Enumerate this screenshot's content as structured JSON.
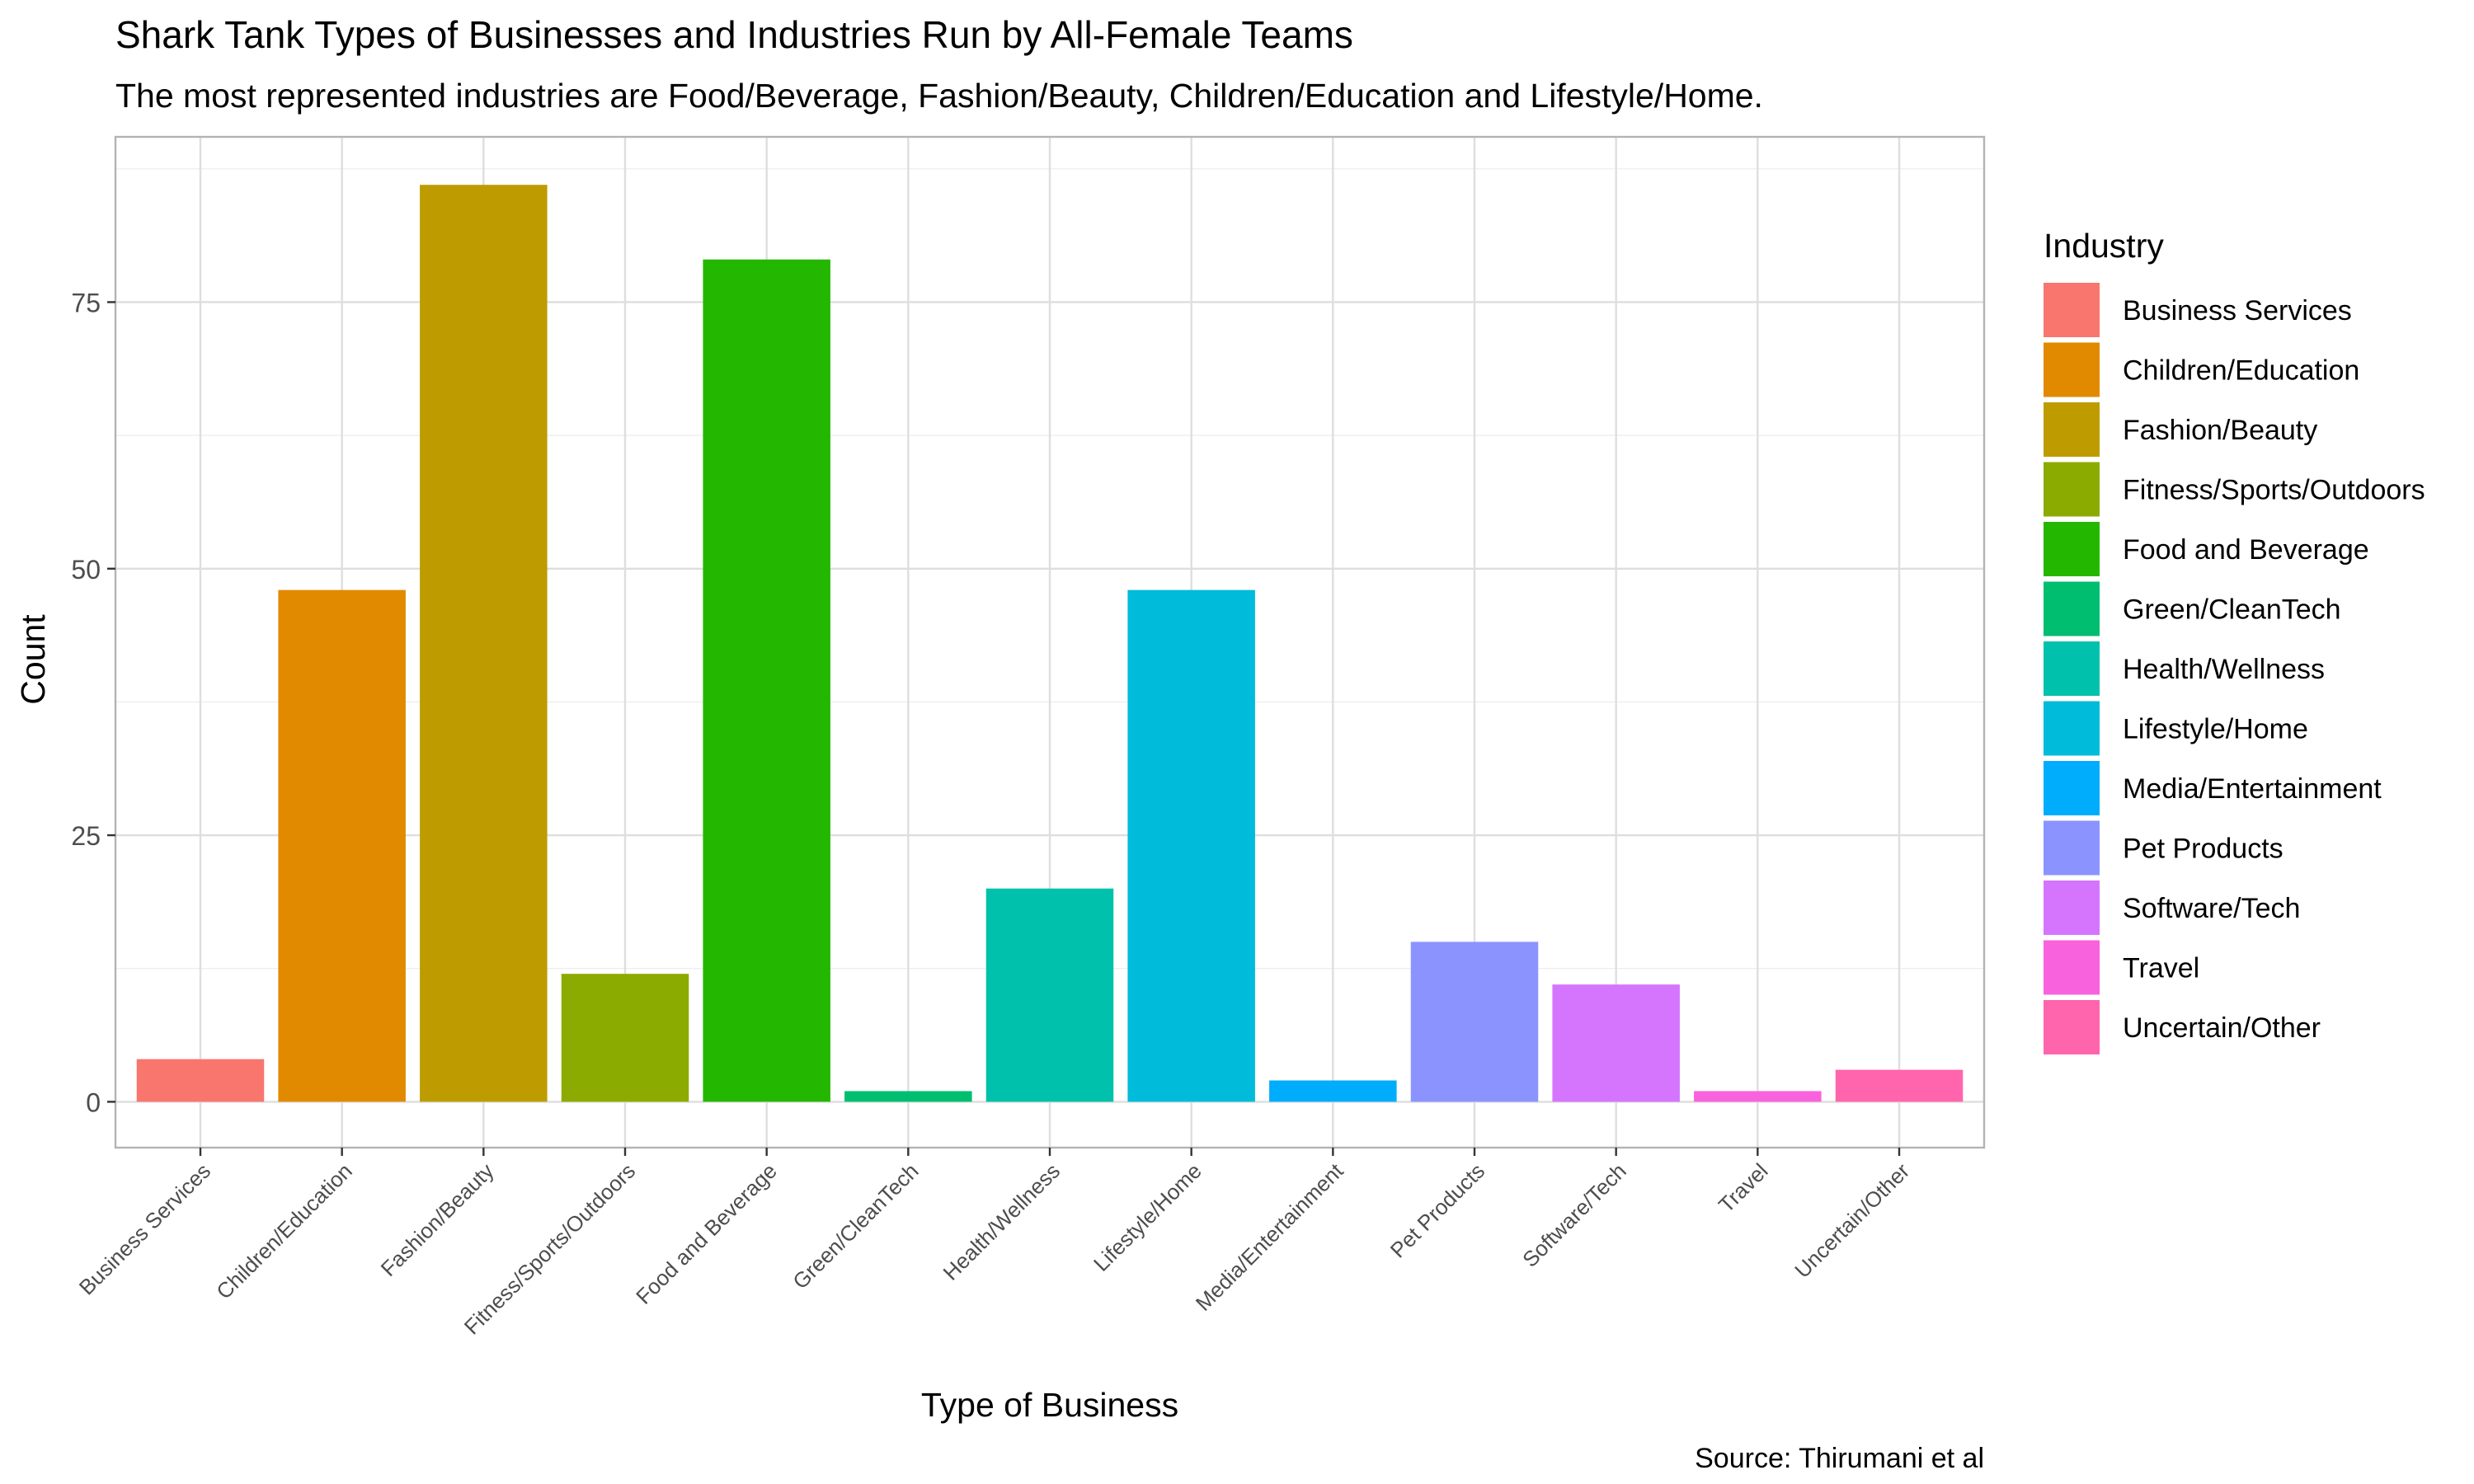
{
  "chart_data": {
    "type": "bar",
    "title": "Shark Tank Types of Businesses and Industries Run by All-Female Teams",
    "subtitle": "The most represented industries are Food/Beverage, Fashion/Beauty, Children/Education and Lifestyle/Home.",
    "caption": "Source: Thirumani et al",
    "xlabel": "Type of Business",
    "ylabel": "Count",
    "ylim": [
      -4.3,
      90.5
    ],
    "yticks": [
      0,
      25,
      50,
      75
    ],
    "grid": true,
    "legend": {
      "title": "Industry",
      "position": "right"
    },
    "categories": [
      "Business Services",
      "Children/Education",
      "Fashion/Beauty",
      "Fitness/Sports/Outdoors",
      "Food and Beverage",
      "Green/CleanTech",
      "Health/Wellness",
      "Lifestyle/Home",
      "Media/Entertainment",
      "Pet Products",
      "Software/Tech",
      "Travel",
      "Uncertain/Other"
    ],
    "values": [
      4,
      48,
      86,
      12,
      79,
      1,
      20,
      48,
      2,
      15,
      11,
      1,
      3
    ],
    "colors": [
      "#F8766D",
      "#E18A00",
      "#BE9C00",
      "#8CAB00",
      "#24B700",
      "#00BE70",
      "#00C1AB",
      "#00BBDA",
      "#00ACFC",
      "#8B93FF",
      "#D575FE",
      "#F962DD",
      "#FF65AC"
    ]
  }
}
